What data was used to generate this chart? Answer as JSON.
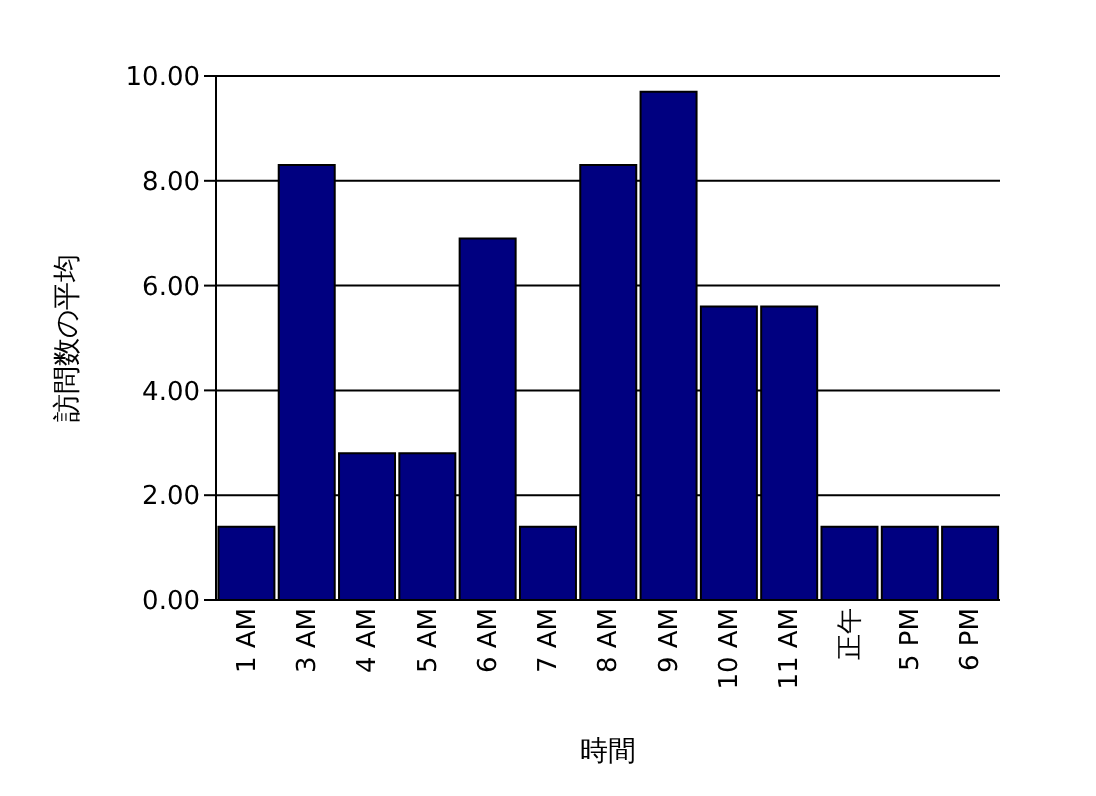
{
  "chart_data": {
    "type": "bar",
    "xlabel": "時間",
    "ylabel": "訪問数の平均",
    "categories": [
      "1 AM",
      "3 AM",
      "4 AM",
      "5 AM",
      "6 AM",
      "7 AM",
      "8 AM",
      "9 AM",
      "10 AM",
      "11 AM",
      "正午",
      "5 PM",
      "6 PM"
    ],
    "values": [
      1.4,
      8.3,
      2.8,
      2.8,
      6.9,
      1.4,
      8.3,
      9.7,
      5.6,
      5.6,
      1.4,
      1.4,
      1.4
    ],
    "color": "#000080",
    "ylim": [
      0,
      10
    ],
    "yticks": [
      {
        "value": 0,
        "label": "0.00"
      },
      {
        "value": 2,
        "label": "2.00"
      },
      {
        "value": 4,
        "label": "4.00"
      },
      {
        "value": 6,
        "label": "6.00"
      },
      {
        "value": 8,
        "label": "8.00"
      },
      {
        "value": 10,
        "label": "10.00"
      }
    ],
    "grid": "y",
    "legend": false
  }
}
